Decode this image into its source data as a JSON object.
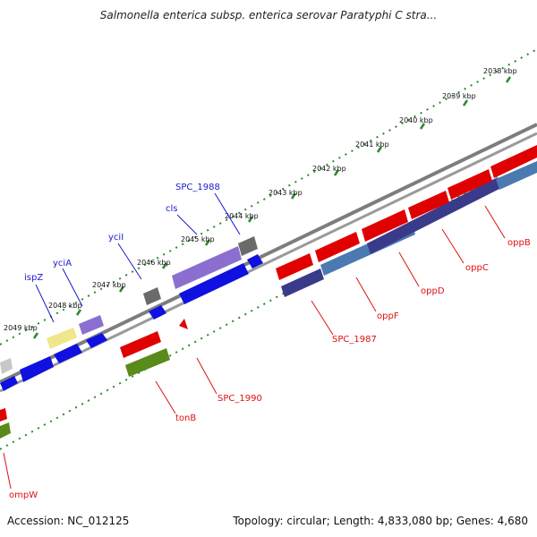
{
  "title": "Salmonella enterica subsp. enterica serovar Paratyphi C stra...",
  "footer": {
    "accession": "Accession: NC_012125",
    "summary": "Topology: circular; Length: 4,833,080 bp; Genes: 4,680"
  },
  "colors": {
    "backbone": "#8a8a8a",
    "gc_ticks": "#2a8a2a",
    "forward_label": "#1a1acc",
    "reverse_label": "#dd1111"
  },
  "scale_labels": [
    "2038 kbp",
    "2039 kbp",
    "2040 kbp",
    "2041 kbp",
    "2042 kbp",
    "2043 kbp",
    "2044 kbp",
    "2045 kbp",
    "2046 kbp",
    "2047 kbp",
    "2048 kbp",
    "2049 kbp"
  ],
  "forward_gene_labels": [
    "SPC_1988",
    "cls",
    "yciI",
    "yciA",
    "ispZ"
  ],
  "reverse_gene_labels": [
    "oppB",
    "oppC",
    "oppD",
    "oppF",
    "SPC_1987",
    "SPC_1990",
    "tonB",
    "ompW"
  ]
}
